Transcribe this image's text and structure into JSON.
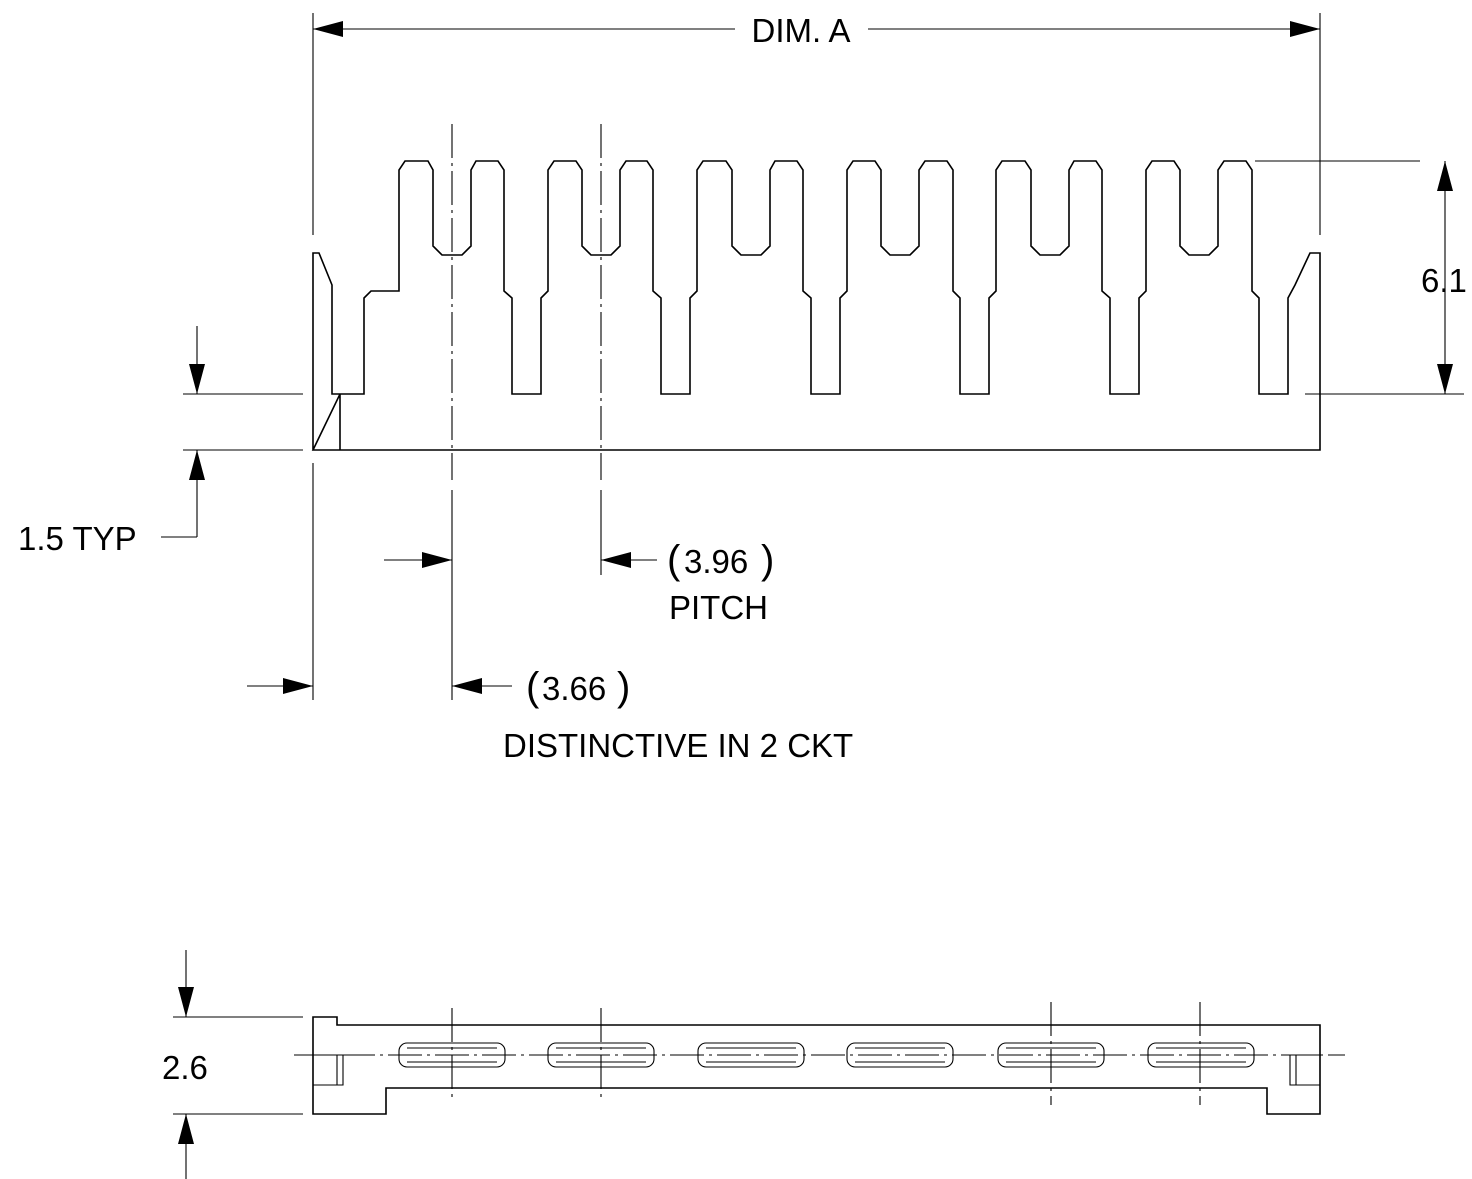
{
  "dimensions": {
    "dim_a": "DIM. A",
    "height_total": "6.1",
    "typ": "1.5 TYP",
    "pitch_value": "3.96",
    "pitch_label": "PITCH",
    "distinctive_value": "3.66",
    "distinctive_label": "DISTINCTIVE IN 2 CKT",
    "thickness": "2.6"
  },
  "paren_open": "(",
  "paren_close": ")",
  "colors": {
    "line": "#000000",
    "background": "#ffffff"
  }
}
